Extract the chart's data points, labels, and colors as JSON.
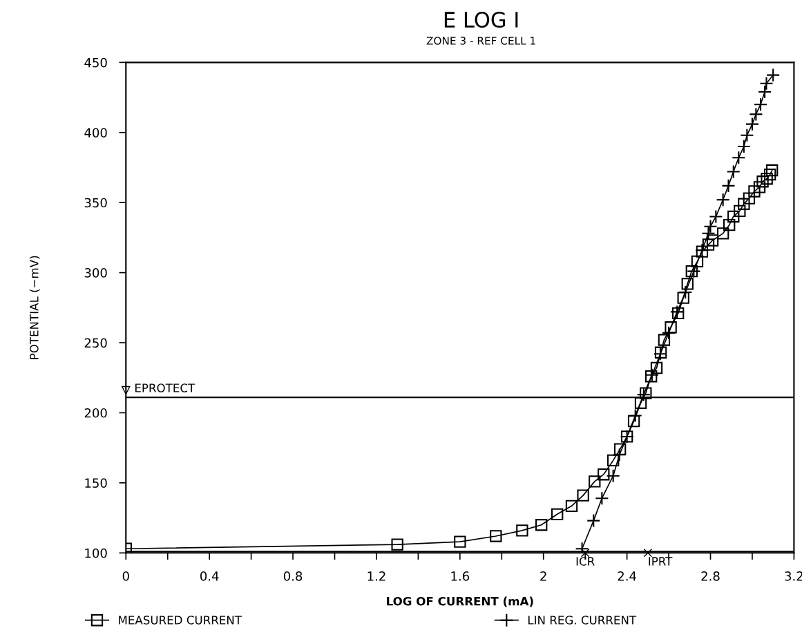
{
  "chart_data": {
    "type": "line",
    "title": "E LOG I",
    "subtitle": "ZONE 3 - REF CELL 1",
    "xlabel": "LOG OF CURRENT (mA)",
    "ylabel": "POTENTIAL (−mV)",
    "xlim": [
      0,
      3.2
    ],
    "ylim": [
      100,
      450
    ],
    "xticks": [
      0,
      {
        "value": 0.2,
        "label": null
      },
      0.4,
      {
        "value": 0.6,
        "label": null
      },
      0.8,
      {
        "value": 1.0,
        "label": null
      },
      1.2,
      {
        "value": 1.4,
        "label": null
      },
      1.6,
      {
        "value": 1.8,
        "label": null
      },
      2,
      {
        "value": 2.2,
        "label": null
      },
      2.4,
      {
        "value": 2.6,
        "label": null
      },
      2.8,
      {
        "value": 3.0,
        "label": null
      },
      3.2
    ],
    "yticks": [
      100,
      150,
      200,
      250,
      300,
      350,
      400,
      450
    ],
    "grid": false,
    "legend": "bottom",
    "series": [
      {
        "name": "MEASURED CURRENT",
        "color": "#000000",
        "marker": "square",
        "x": [
          0,
          1.3,
          1.6,
          1.772,
          1.898,
          1.99,
          2.066,
          2.135,
          2.19,
          2.245,
          2.288,
          2.334,
          2.367,
          2.4,
          2.433,
          2.466,
          2.49,
          2.516,
          2.542,
          2.562,
          2.578,
          2.61,
          2.645,
          2.67,
          2.69,
          2.71,
          2.737,
          2.76,
          2.79,
          2.81,
          2.86,
          2.89,
          2.91,
          2.94,
          2.96,
          2.985,
          3.01,
          3.035,
          3.05,
          3.07,
          3.085,
          3.095
        ],
        "values": [
          103,
          106,
          108,
          112,
          116,
          120,
          127.6,
          133.5,
          141,
          151,
          156,
          166,
          174,
          183,
          194,
          207,
          214,
          226,
          232,
          243,
          252,
          261,
          271,
          282,
          292,
          301,
          308,
          315,
          320,
          323,
          328,
          334,
          340,
          344,
          349,
          353,
          358,
          361,
          365,
          367,
          370,
          373
        ]
      },
      {
        "name": "LIN REG. CURRENT",
        "color": "#000000",
        "marker": "cross",
        "x": [
          2.185,
          2.24,
          2.28,
          2.334,
          2.364,
          2.4,
          2.44,
          2.48,
          2.52,
          2.56,
          2.6,
          2.64,
          2.68,
          2.72,
          2.76,
          2.79,
          2.8,
          2.826,
          2.86,
          2.886,
          2.91,
          2.935,
          2.96,
          2.975,
          3.0,
          3.018,
          3.04,
          3.06,
          3.068,
          3.1
        ],
        "values": [
          103,
          123,
          139,
          155,
          170,
          183,
          198,
          213,
          227,
          242,
          257,
          272,
          286,
          301,
          316,
          328,
          333,
          340,
          352,
          362,
          372,
          382,
          390,
          398,
          406,
          413,
          420,
          429,
          435,
          441
        ]
      }
    ],
    "ref_lines": [
      {
        "axis": "y",
        "value": 211,
        "label": "EPROTECT"
      },
      {
        "axis": "y",
        "value": 101
      }
    ],
    "annotations": [
      {
        "text": "ICR",
        "x": 2.2,
        "y": 100
      },
      {
        "text": "IPRT",
        "x": 2.5,
        "y": 100
      }
    ]
  }
}
